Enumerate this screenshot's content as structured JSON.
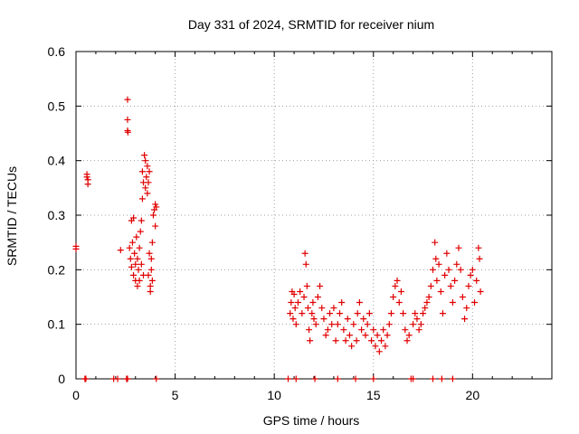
{
  "chart_data": {
    "type": "scatter",
    "title": "Day 331 of 2024, SRMTID for receiver nium",
    "xlabel": "GPS time / hours",
    "ylabel": "SRMTID / TECUs",
    "xlim": [
      0,
      24
    ],
    "ylim": [
      0,
      0.6
    ],
    "xticks": [
      0,
      5,
      10,
      15,
      20
    ],
    "xtick_labels": [
      "0",
      "5",
      "10",
      "15",
      "20"
    ],
    "yticks": [
      0,
      0.1,
      0.2,
      0.3,
      0.4,
      0.5,
      0.6
    ],
    "ytick_labels": [
      "0",
      "0.1",
      "0.2",
      "0.3",
      "0.4",
      "0.5",
      "0.6"
    ],
    "grid": true,
    "marker": "+",
    "color": "#e00000",
    "series": [
      {
        "name": "SRMTID",
        "points": [
          [
            0.0,
            0.243
          ],
          [
            0.0,
            0.238
          ],
          [
            0.45,
            0.0
          ],
          [
            0.5,
            0.0
          ],
          [
            0.55,
            0.37
          ],
          [
            0.6,
            0.365
          ],
          [
            0.6,
            0.357
          ],
          [
            0.55,
            0.375
          ],
          [
            1.9,
            0.0
          ],
          [
            2.1,
            0.0
          ],
          [
            2.25,
            0.236
          ],
          [
            2.55,
            0.0
          ],
          [
            2.6,
            0.0
          ],
          [
            2.6,
            0.512
          ],
          [
            2.6,
            0.475
          ],
          [
            2.6,
            0.455
          ],
          [
            2.62,
            0.452
          ],
          [
            2.7,
            0.24
          ],
          [
            2.75,
            0.22
          ],
          [
            2.8,
            0.205
          ],
          [
            2.8,
            0.29
          ],
          [
            2.85,
            0.25
          ],
          [
            2.9,
            0.19
          ],
          [
            2.9,
            0.295
          ],
          [
            2.95,
            0.23
          ],
          [
            3.0,
            0.21
          ],
          [
            3.0,
            0.18
          ],
          [
            3.05,
            0.26
          ],
          [
            3.1,
            0.17
          ],
          [
            3.1,
            0.22
          ],
          [
            3.15,
            0.2
          ],
          [
            3.2,
            0.24
          ],
          [
            3.2,
            0.18
          ],
          [
            3.25,
            0.27
          ],
          [
            3.3,
            0.29
          ],
          [
            3.3,
            0.21
          ],
          [
            3.35,
            0.33
          ],
          [
            3.35,
            0.38
          ],
          [
            3.4,
            0.36
          ],
          [
            3.4,
            0.19
          ],
          [
            3.45,
            0.41
          ],
          [
            3.5,
            0.35
          ],
          [
            3.5,
            0.4
          ],
          [
            3.55,
            0.37
          ],
          [
            3.6,
            0.39
          ],
          [
            3.6,
            0.34
          ],
          [
            3.65,
            0.36
          ],
          [
            3.7,
            0.38
          ],
          [
            3.75,
            0.17
          ],
          [
            3.75,
            0.16
          ],
          [
            3.8,
            0.2
          ],
          [
            3.8,
            0.22
          ],
          [
            3.85,
            0.18
          ],
          [
            3.85,
            0.25
          ],
          [
            3.9,
            0.3
          ],
          [
            3.95,
            0.31
          ],
          [
            4.0,
            0.32
          ],
          [
            4.0,
            0.28
          ],
          [
            3.7,
            0.23
          ],
          [
            3.65,
            0.19
          ],
          [
            4.05,
            0.0
          ],
          [
            4.05,
            0.315
          ],
          [
            10.7,
            0.0
          ],
          [
            10.8,
            0.12
          ],
          [
            10.85,
            0.14
          ],
          [
            10.9,
            0.16
          ],
          [
            10.95,
            0.11
          ],
          [
            11.0,
            0.155
          ],
          [
            11.05,
            0.13
          ],
          [
            11.1,
            0.0
          ],
          [
            11.1,
            0.1
          ],
          [
            11.2,
            0.14
          ],
          [
            11.3,
            0.16
          ],
          [
            11.4,
            0.12
          ],
          [
            11.5,
            0.15
          ],
          [
            11.55,
            0.23
          ],
          [
            11.6,
            0.21
          ],
          [
            11.65,
            0.17
          ],
          [
            11.7,
            0.13
          ],
          [
            11.75,
            0.09
          ],
          [
            11.8,
            0.07
          ],
          [
            11.9,
            0.12
          ],
          [
            11.95,
            0.14
          ],
          [
            12.0,
            0.11
          ],
          [
            12.05,
            0.0
          ],
          [
            12.1,
            0.1
          ],
          [
            12.2,
            0.15
          ],
          [
            12.3,
            0.17
          ],
          [
            12.4,
            0.13
          ],
          [
            12.5,
            0.11
          ],
          [
            12.6,
            0.08
          ],
          [
            12.7,
            0.09
          ],
          [
            12.8,
            0.12
          ],
          [
            12.9,
            0.1
          ],
          [
            13.0,
            0.13
          ],
          [
            13.1,
            0.07
          ],
          [
            13.2,
            0.0
          ],
          [
            13.2,
            0.1
          ],
          [
            13.3,
            0.12
          ],
          [
            13.4,
            0.14
          ],
          [
            13.5,
            0.09
          ],
          [
            13.6,
            0.07
          ],
          [
            13.7,
            0.11
          ],
          [
            13.8,
            0.08
          ],
          [
            13.9,
            0.06
          ],
          [
            14.0,
            0.1
          ],
          [
            14.1,
            0.0
          ],
          [
            14.15,
            0.07
          ],
          [
            14.2,
            0.12
          ],
          [
            14.3,
            0.14
          ],
          [
            14.4,
            0.09
          ],
          [
            14.5,
            0.11
          ],
          [
            14.6,
            0.08
          ],
          [
            14.7,
            0.1
          ],
          [
            14.8,
            0.12
          ],
          [
            14.9,
            0.07
          ],
          [
            15.0,
            0.0
          ],
          [
            15.0,
            0.09
          ],
          [
            15.1,
            0.06
          ],
          [
            15.2,
            0.08
          ],
          [
            15.3,
            0.05
          ],
          [
            15.4,
            0.07
          ],
          [
            15.5,
            0.09
          ],
          [
            15.6,
            0.06
          ],
          [
            15.7,
            0.08
          ],
          [
            15.8,
            0.1
          ],
          [
            15.9,
            0.12
          ],
          [
            16.0,
            0.15
          ],
          [
            16.1,
            0.17
          ],
          [
            16.2,
            0.18
          ],
          [
            16.3,
            0.14
          ],
          [
            16.4,
            0.16
          ],
          [
            16.5,
            0.12
          ],
          [
            16.6,
            0.09
          ],
          [
            16.7,
            0.07
          ],
          [
            16.8,
            0.08
          ],
          [
            16.9,
            0.0
          ],
          [
            17.0,
            0.0
          ],
          [
            17.0,
            0.1
          ],
          [
            17.1,
            0.12
          ],
          [
            17.2,
            0.11
          ],
          [
            17.3,
            0.09
          ],
          [
            17.4,
            0.1
          ],
          [
            17.5,
            0.12
          ],
          [
            17.6,
            0.13
          ],
          [
            17.7,
            0.14
          ],
          [
            17.8,
            0.15
          ],
          [
            17.9,
            0.17
          ],
          [
            18.0,
            0.0
          ],
          [
            18.0,
            0.2
          ],
          [
            18.1,
            0.25
          ],
          [
            18.15,
            0.22
          ],
          [
            18.2,
            0.18
          ],
          [
            18.3,
            0.21
          ],
          [
            18.4,
            0.16
          ],
          [
            18.45,
            0.0
          ],
          [
            18.5,
            0.12
          ],
          [
            18.6,
            0.19
          ],
          [
            18.7,
            0.23
          ],
          [
            18.8,
            0.2
          ],
          [
            18.9,
            0.17
          ],
          [
            19.0,
            0.0
          ],
          [
            19.0,
            0.14
          ],
          [
            19.1,
            0.18
          ],
          [
            19.2,
            0.21
          ],
          [
            19.3,
            0.24
          ],
          [
            19.4,
            0.2
          ],
          [
            19.5,
            0.15
          ],
          [
            19.6,
            0.11
          ],
          [
            19.7,
            0.13
          ],
          [
            19.8,
            0.17
          ],
          [
            19.9,
            0.19
          ],
          [
            20.0,
            0.2
          ],
          [
            20.1,
            0.14
          ],
          [
            20.2,
            0.18
          ],
          [
            20.3,
            0.24
          ],
          [
            20.35,
            0.22
          ],
          [
            20.4,
            0.16
          ]
        ]
      }
    ]
  }
}
